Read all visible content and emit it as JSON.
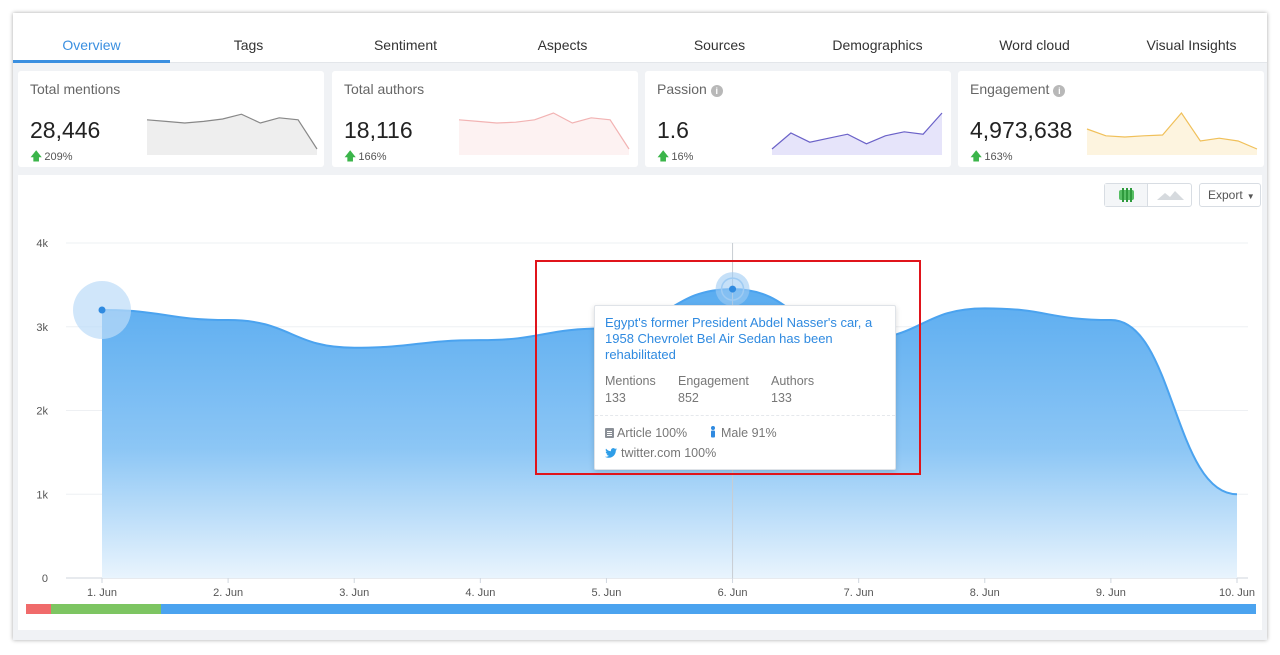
{
  "tabs": [
    {
      "label": "Overview",
      "active": true
    },
    {
      "label": "Tags"
    },
    {
      "label": "Sentiment"
    },
    {
      "label": "Aspects"
    },
    {
      "label": "Sources"
    },
    {
      "label": "Demographics"
    },
    {
      "label": "Word cloud"
    },
    {
      "label": "Visual Insights"
    }
  ],
  "cards": [
    {
      "label": "Total mentions",
      "value": "28,446",
      "delta": "209%",
      "info": false,
      "spark_color": "#888888",
      "spark_fill": "#eeeeee",
      "spark": [
        0.78,
        0.74,
        0.7,
        0.74,
        0.8,
        0.92,
        0.7,
        0.83,
        0.78,
        0.05
      ]
    },
    {
      "label": "Total authors",
      "value": "18,116",
      "delta": "166%",
      "info": false,
      "spark_color": "#f2b3b3",
      "spark_fill": "#fdf2f2",
      "spark": [
        0.78,
        0.74,
        0.7,
        0.72,
        0.78,
        0.95,
        0.7,
        0.83,
        0.78,
        0.05
      ]
    },
    {
      "label": "Passion",
      "value": "1.6",
      "delta": "16%",
      "info": true,
      "spark_color": "#6b62c8",
      "spark_fill": "#e6e4fa",
      "spark": [
        0.05,
        0.45,
        0.22,
        0.32,
        0.42,
        0.18,
        0.38,
        0.48,
        0.42,
        0.95
      ]
    },
    {
      "label": "Engagement",
      "value": "4,973,638",
      "delta": "163%",
      "info": true,
      "spark_color": "#f0c05a",
      "spark_fill": "#fdf4df",
      "spark": [
        0.55,
        0.38,
        0.35,
        0.38,
        0.4,
        0.95,
        0.25,
        0.32,
        0.25,
        0.05
      ]
    }
  ],
  "toolbar": {
    "export_label": "Export"
  },
  "chart_data": {
    "type": "area",
    "x": [
      "1. Jun",
      "2. Jun",
      "3. Jun",
      "4. Jun",
      "5. Jun",
      "6. Jun",
      "7. Jun",
      "8. Jun",
      "9. Jun",
      "10. Jun"
    ],
    "values": [
      3200,
      3080,
      2750,
      2840,
      2980,
      3450,
      2850,
      3220,
      3080,
      1000
    ],
    "yticks": [
      "0",
      "1k",
      "2k",
      "3k",
      "4k"
    ],
    "ylim": [
      0,
      4000
    ],
    "color": "#4ba3ef",
    "highlighted_index": 5
  },
  "tooltip": {
    "title": "Egypt's former President Abdel Nasser's car, a 1958 Chevrolet Bel Air Sedan has been rehabilitated",
    "stats": [
      {
        "label": "Mentions",
        "value": "133"
      },
      {
        "label": "Engagement",
        "value": "852"
      },
      {
        "label": "Authors",
        "value": "133"
      }
    ],
    "article": "Article 100%",
    "gender": "Male 91%",
    "source": "twitter.com 100%"
  },
  "sentiment_bar": {
    "negative": 0.02,
    "neutral": 0.09,
    "positive": 0.89
  }
}
